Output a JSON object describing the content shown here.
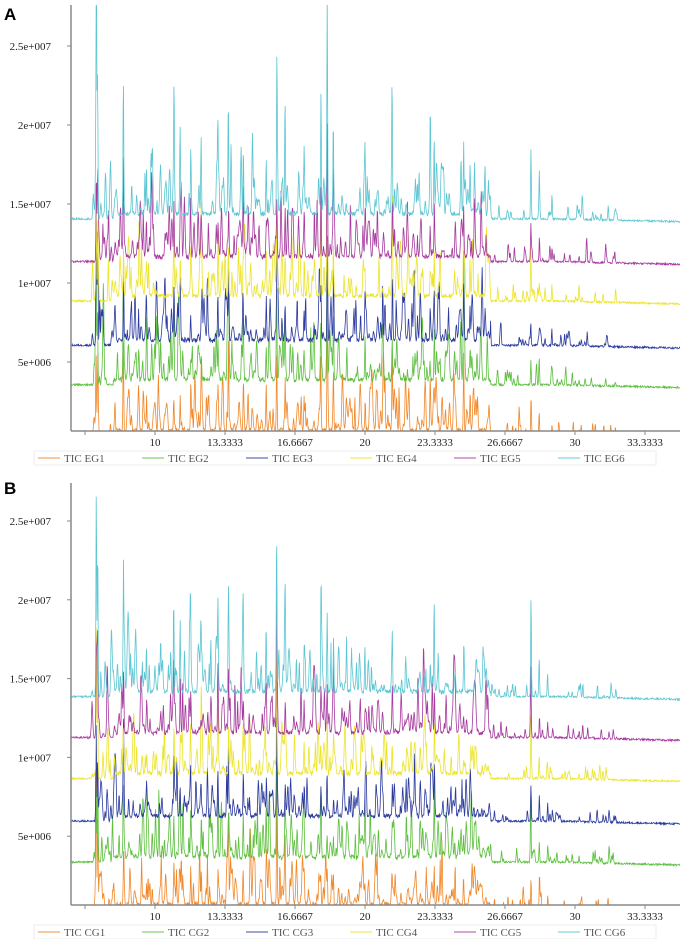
{
  "chart_data": [
    {
      "type": "line",
      "panel_label": "A",
      "xlim": [
        6,
        35
      ],
      "ylim": [
        0,
        27000000
      ],
      "x_ticks": [
        6.6667,
        10,
        13.3333,
        16.6667,
        20,
        23.3333,
        26.6667,
        30,
        33.3333
      ],
      "x_tick_labels": [
        "",
        "10",
        "13.3333",
        "16.6667",
        "20",
        "23.3333",
        "26.6667",
        "30",
        "33.3333"
      ],
      "y_ticks": [
        5000000,
        10000000,
        15000000,
        20000000,
        25000000
      ],
      "y_tick_labels": [
        "5e+006",
        "1e+007",
        "1.5e+007",
        "2e+007",
        "2.5e+007"
      ],
      "legend_position": "bottom",
      "series": [
        {
          "name": "TIC EG1",
          "color": "#f0882a",
          "baseline": 300000
        },
        {
          "name": "TIC EG2",
          "color": "#5cbf3e",
          "baseline": 3500000
        },
        {
          "name": "TIC EG3",
          "color": "#2a3a9e",
          "baseline": 6000000
        },
        {
          "name": "TIC EG4",
          "color": "#ece42c",
          "baseline": 8800000
        },
        {
          "name": "TIC EG5",
          "color": "#a63a9e",
          "baseline": 11300000
        },
        {
          "name": "TIC EG6",
          "color": "#5cc6d2",
          "baseline": 14000000
        }
      ],
      "major_peaks": [
        [
          7.2,
          10.5
        ],
        [
          7.27,
          8
        ],
        [
          8.5,
          8
        ],
        [
          9.6,
          3
        ],
        [
          10.9,
          6
        ],
        [
          11.2,
          5
        ],
        [
          11.7,
          4
        ],
        [
          12.2,
          3.5
        ],
        [
          13.0,
          5.5
        ],
        [
          13.5,
          7
        ],
        [
          14.2,
          4
        ],
        [
          15.3,
          3.5
        ],
        [
          15.8,
          9.5
        ],
        [
          16.2,
          4
        ],
        [
          17.1,
          3.5
        ],
        [
          17.9,
          8
        ],
        [
          18.2,
          12.8
        ],
        [
          18.5,
          6
        ],
        [
          20.0,
          3.5
        ],
        [
          21.3,
          5.5
        ],
        [
          22.5,
          2
        ],
        [
          23.1,
          3
        ],
        [
          23.3,
          5
        ],
        [
          24.7,
          4.5
        ],
        [
          25.0,
          3
        ],
        [
          27.9,
          4.5
        ],
        [
          28.3,
          2.5
        ],
        [
          28.9,
          1.5
        ],
        [
          30.2,
          0.6
        ]
      ]
    },
    {
      "type": "line",
      "panel_label": "B",
      "xlim": [
        6,
        35
      ],
      "ylim": [
        0,
        27000000
      ],
      "x_ticks": [
        6.6667,
        10,
        13.3333,
        16.6667,
        20,
        23.3333,
        26.6667,
        30,
        33.3333
      ],
      "x_tick_labels": [
        "",
        "10",
        "13.3333",
        "16.6667",
        "20",
        "23.3333",
        "26.6667",
        "30",
        "33.3333"
      ],
      "y_ticks": [
        5000000,
        10000000,
        15000000,
        20000000,
        25000000
      ],
      "y_tick_labels": [
        "5e+006",
        "1e+007",
        "1.5e+007",
        "2e+007",
        "2.5e+007"
      ],
      "legend_position": "bottom",
      "series": [
        {
          "name": "TIC CG1",
          "color": "#f0882a",
          "baseline": 300000
        },
        {
          "name": "TIC CG2",
          "color": "#5cbf3e",
          "baseline": 3300000
        },
        {
          "name": "TIC CG3",
          "color": "#2a3a9e",
          "baseline": 5900000
        },
        {
          "name": "TIC CG4",
          "color": "#ece42c",
          "baseline": 8600000
        },
        {
          "name": "TIC CG5",
          "color": "#a63a9e",
          "baseline": 11200000
        },
        {
          "name": "TIC CG6",
          "color": "#5cc6d2",
          "baseline": 13800000
        }
      ],
      "major_peaks": [
        [
          7.2,
          12.5
        ],
        [
          7.27,
          9
        ],
        [
          8.5,
          7
        ],
        [
          9.6,
          3
        ],
        [
          10.9,
          6
        ],
        [
          11.2,
          4.5
        ],
        [
          11.7,
          3.5
        ],
        [
          12.2,
          3
        ],
        [
          13.0,
          6
        ],
        [
          13.5,
          6.5
        ],
        [
          14.2,
          4
        ],
        [
          15.3,
          4
        ],
        [
          15.8,
          10.3
        ],
        [
          16.2,
          4
        ],
        [
          17.1,
          3
        ],
        [
          17.9,
          5
        ],
        [
          18.2,
          4.5
        ],
        [
          18.5,
          3.5
        ],
        [
          20.0,
          3
        ],
        [
          21.3,
          2.5
        ],
        [
          22.9,
          1.5
        ],
        [
          23.3,
          6
        ],
        [
          24.7,
          2.5
        ],
        [
          27.9,
          6.5
        ],
        [
          28.3,
          2.5
        ],
        [
          28.7,
          1.5
        ],
        [
          30.2,
          0.8
        ]
      ]
    }
  ]
}
